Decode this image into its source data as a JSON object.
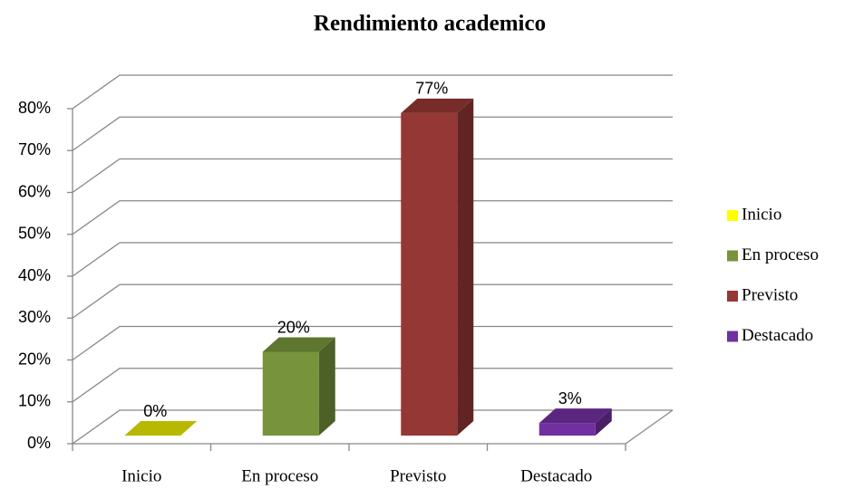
{
  "chart_data": {
    "type": "bar3d",
    "title": "Rendimiento academico",
    "categories": [
      "Inicio",
      "En proceso",
      "Previsto",
      "Destacado"
    ],
    "values": [
      0,
      20,
      77,
      3
    ],
    "value_labels": [
      "0%",
      "20%",
      "77%",
      "3%"
    ],
    "colors": [
      "#e6e600",
      "#77933c",
      "#953735",
      "#7030a0"
    ],
    "ylim": [
      0,
      80
    ],
    "yticks": [
      {
        "value": 0,
        "label": "0%"
      },
      {
        "value": 10,
        "label": "10%"
      },
      {
        "value": 20,
        "label": "20%"
      },
      {
        "value": 30,
        "label": "30%"
      },
      {
        "value": 40,
        "label": "40%"
      },
      {
        "value": 50,
        "label": "50%"
      },
      {
        "value": 60,
        "label": "60%"
      },
      {
        "value": 70,
        "label": "70%"
      },
      {
        "value": 80,
        "label": "80%"
      }
    ],
    "grid": true,
    "legend": "right"
  }
}
